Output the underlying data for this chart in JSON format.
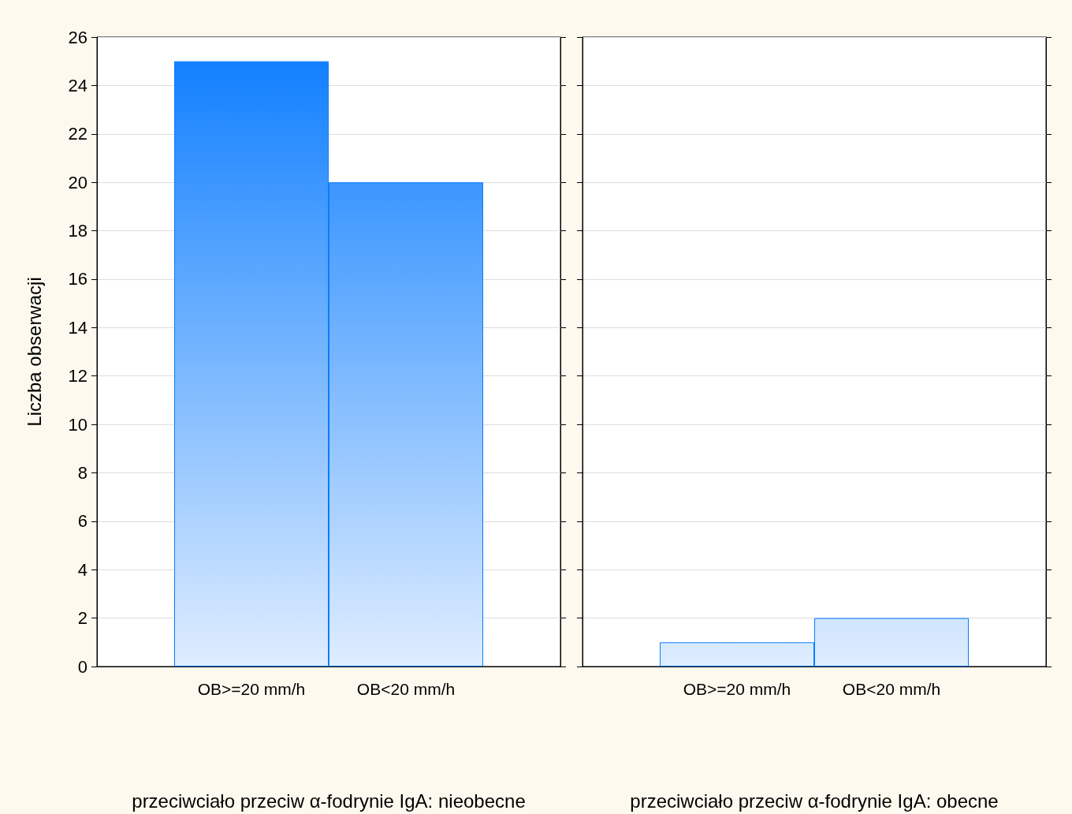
{
  "chart_data": [
    {
      "type": "bar",
      "ylabel": "Liczba obserwacji",
      "xlabel": "przeciwciało przeciw α-fodrynie IgA: nieobecne",
      "categories": [
        "OB>=20 mm/h",
        "OB<20 mm/h"
      ],
      "values": [
        25,
        20
      ],
      "color": "#0a7cff",
      "ylim": [
        0,
        26
      ],
      "yticks": [
        0,
        2,
        4,
        6,
        8,
        10,
        12,
        14,
        16,
        18,
        20,
        22,
        24,
        26
      ],
      "grid": "y"
    },
    {
      "type": "bar",
      "xlabel": "przeciwciało przeciw α-fodrynie IgA: obecne",
      "categories": [
        "OB>=20 mm/h",
        "OB<20 mm/h"
      ],
      "values": [
        1,
        2
      ],
      "color": "#0a7cff",
      "ylim": [
        0,
        26
      ],
      "yticks": [
        0,
        2,
        4,
        6,
        8,
        10,
        12,
        14,
        16,
        18,
        20,
        22,
        24,
        26
      ],
      "grid": "y",
      "tick_labels": "x"
    }
  ]
}
